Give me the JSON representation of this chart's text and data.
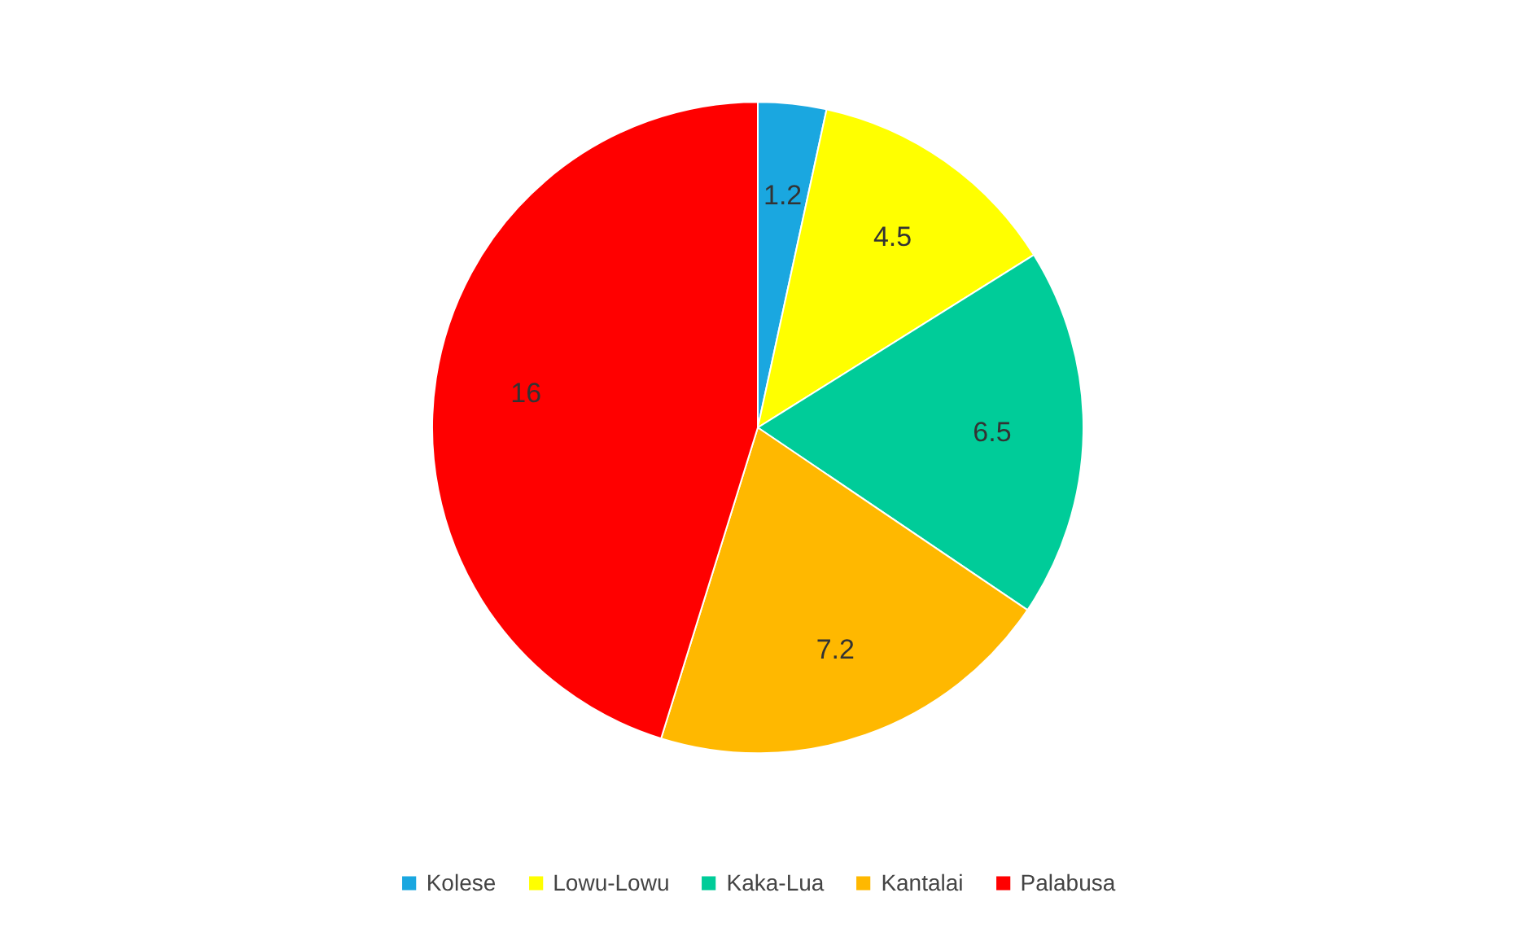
{
  "chart_data": {
    "type": "pie",
    "categories": [
      "Kolese",
      "Lowu-Lowu",
      "Kaka-Lua",
      "Kantalai",
      "Palabusa"
    ],
    "values": [
      1.2,
      4.5,
      6.5,
      7.2,
      16
    ],
    "colors": [
      "#1aa7e0",
      "#ffff00",
      "#00cc99",
      "#ffb800",
      "#ff0000"
    ],
    "data_labels": true,
    "legend": "bottom"
  }
}
